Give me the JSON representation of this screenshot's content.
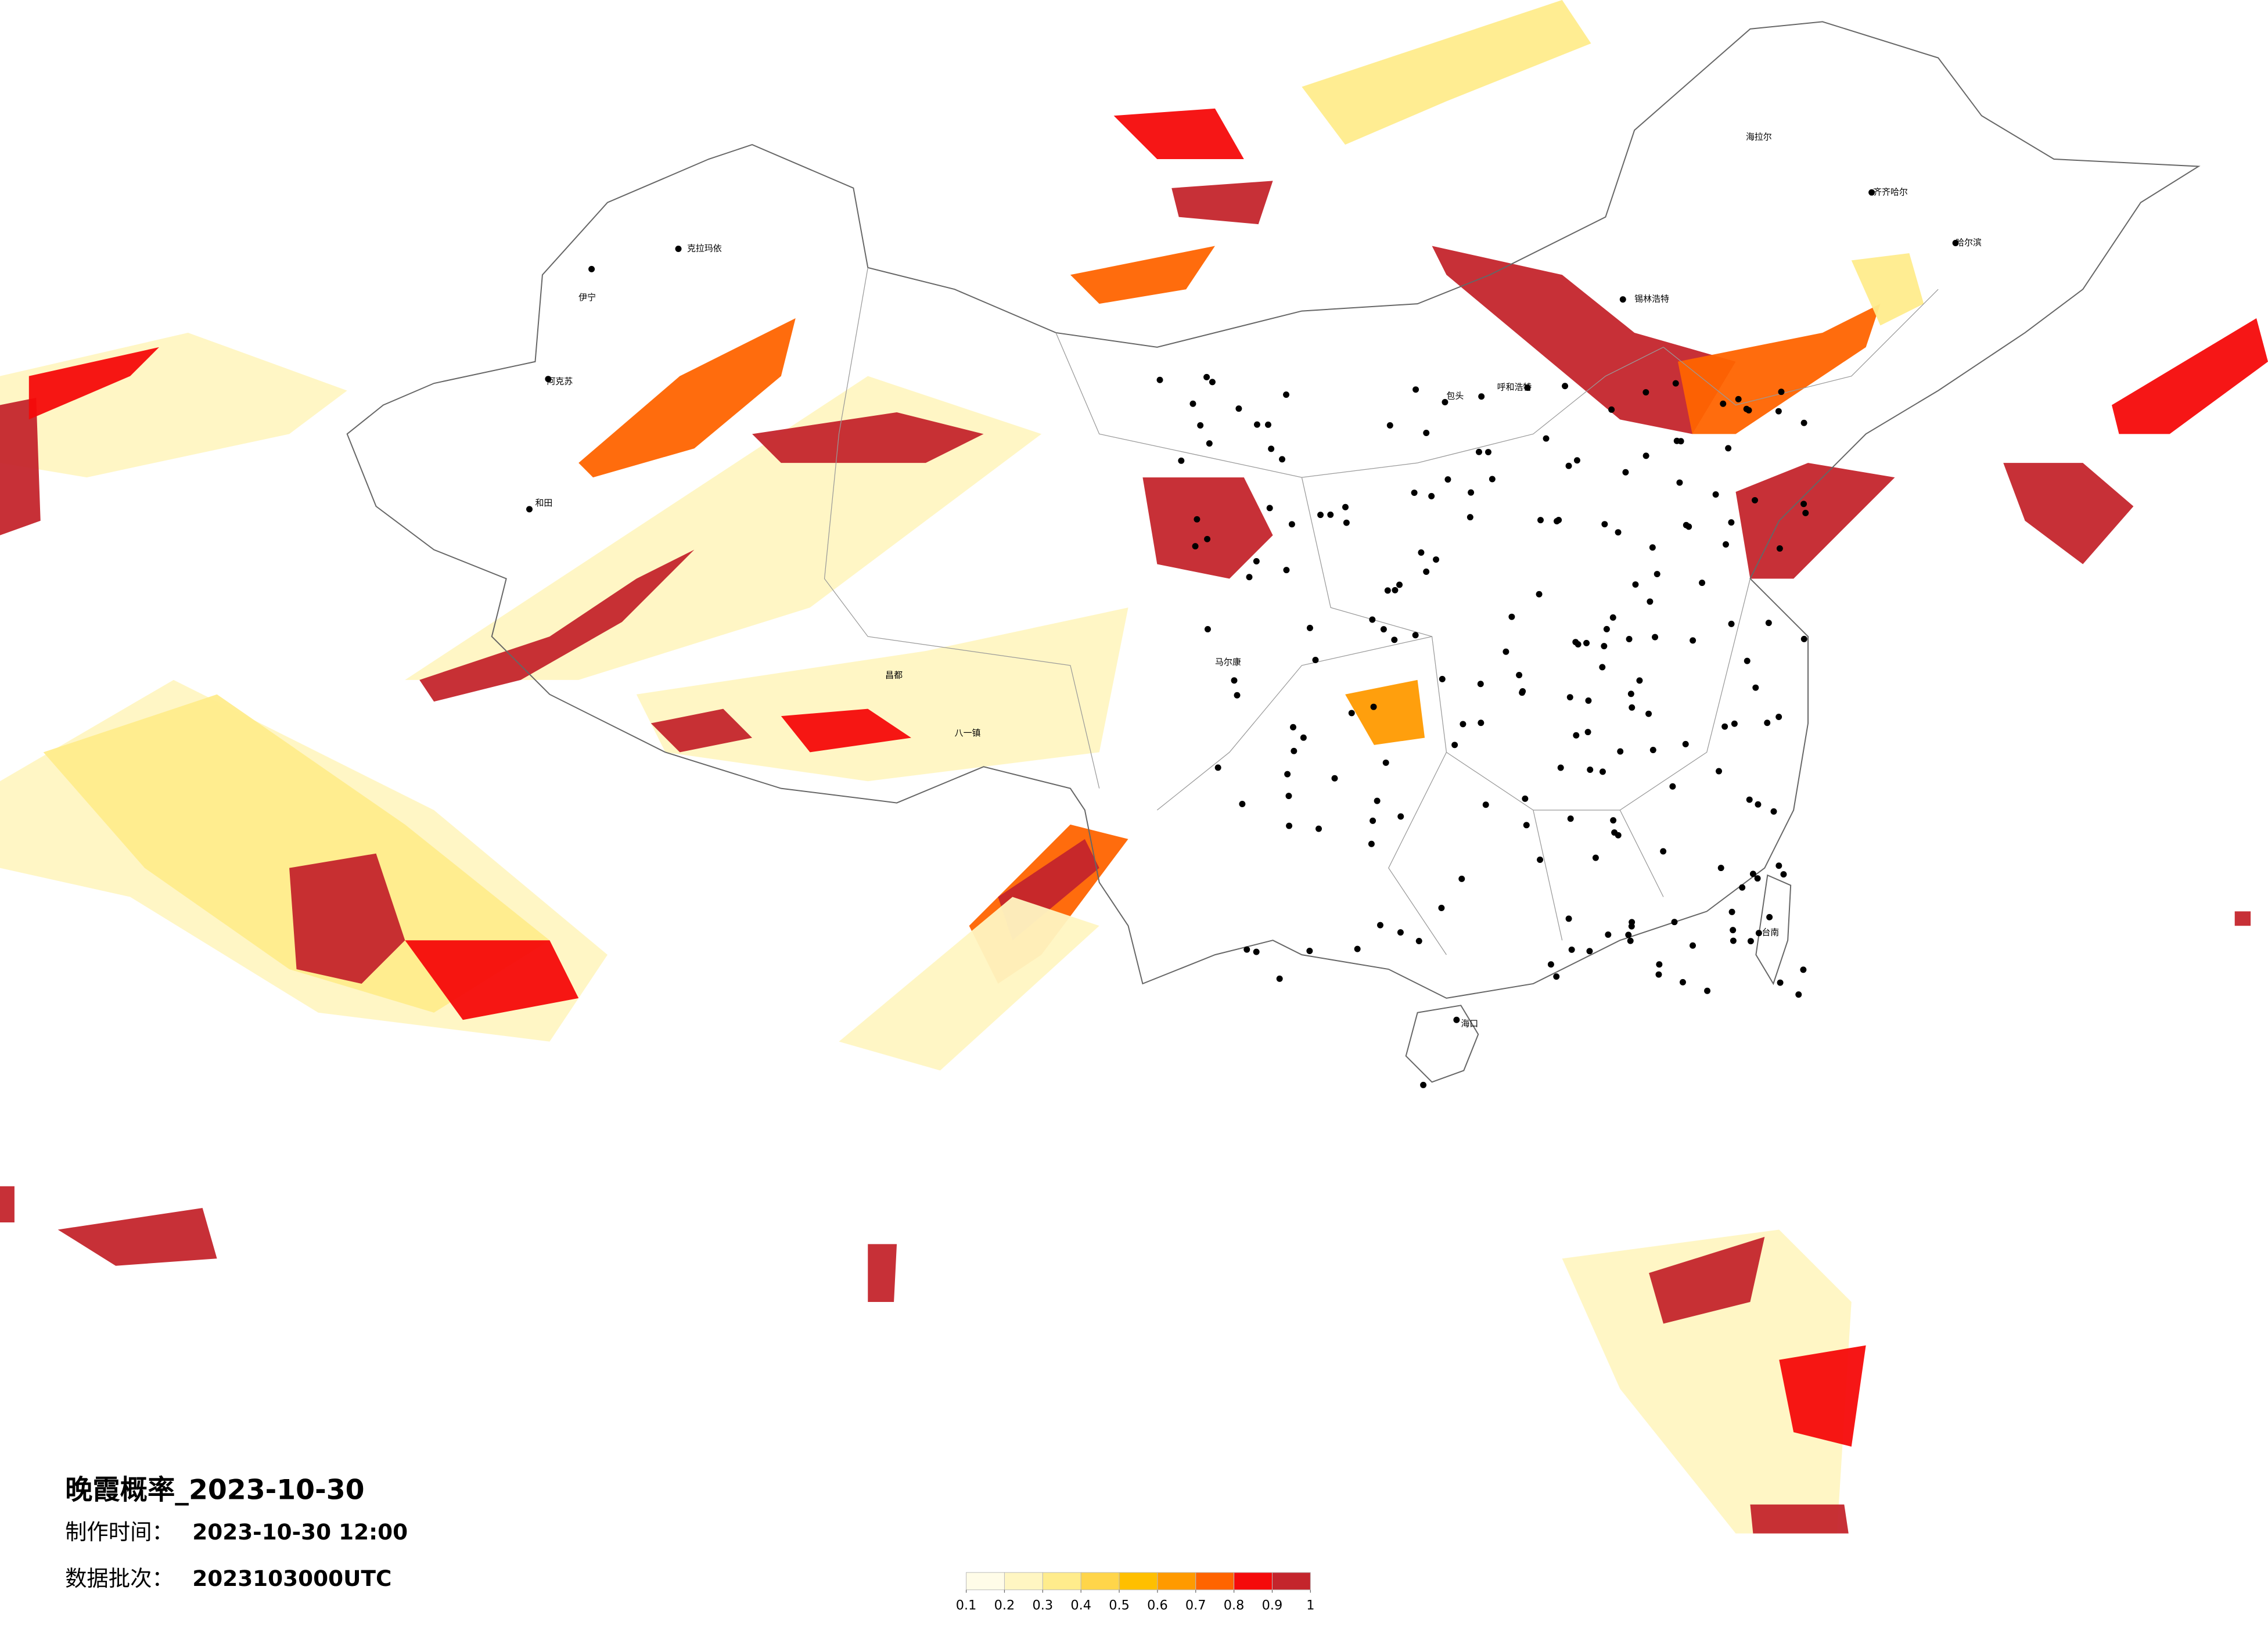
{
  "title": "晚霞概率_2023-10-30",
  "meta": {
    "made_label": "制作时间：",
    "made_time": "2023-10-30 12:00",
    "batch_label": "数据批次：",
    "batch": "2023103000UTC"
  },
  "legend": {
    "ticks": [
      0.1,
      0.2,
      0.3,
      0.4,
      0.5,
      0.6,
      0.7,
      0.8,
      0.9,
      1
    ],
    "colors": [
      "#fffce8",
      "#fff6c2",
      "#ffec8c",
      "#ffd54a",
      "#ffbf00",
      "#ff9a00",
      "#ff6400",
      "#f50a0a",
      "#c4252c"
    ]
  },
  "cities": [
    "克拉玛依",
    "伊宁",
    "阿克苏",
    "和田",
    "海拉尔",
    "齐齐哈尔",
    "哈尔滨",
    "锡林浩特",
    "包头",
    "呼和浩特",
    "昌都",
    "八一镇",
    "马尔康",
    "海口",
    "台南"
  ]
}
